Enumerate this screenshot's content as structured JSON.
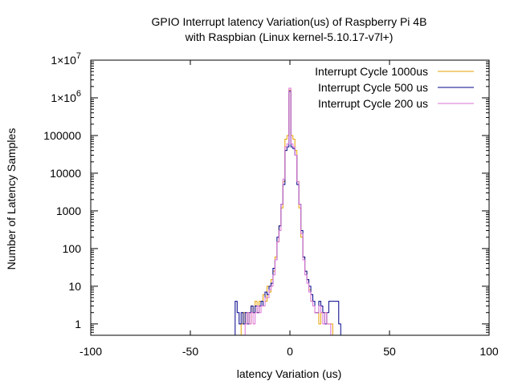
{
  "chart_data": {
    "type": "line",
    "step": true,
    "title_lines": [
      "GPIO Interrupt latency Variation(us) of Raspberry Pi 4B",
      "with Raspbian (Linux kernel-5.10.17-v7l+)"
    ],
    "xlabel": "latency Variation (us)",
    "ylabel": "Number of Latency Samples",
    "xlim": [
      -100,
      100
    ],
    "ylim": [
      0.5,
      10000000
    ],
    "yscale": "log",
    "grid": false,
    "legend_position": "top-right",
    "xticks": [
      {
        "value": -100,
        "label": "-100"
      },
      {
        "value": -50,
        "label": "-50"
      },
      {
        "value": 0,
        "label": "0"
      },
      {
        "value": 50,
        "label": "50"
      },
      {
        "value": 100,
        "label": "100"
      }
    ],
    "yticks": [
      {
        "value": 1,
        "label": "1"
      },
      {
        "value": 10,
        "label": "10"
      },
      {
        "value": 100,
        "label": "100"
      },
      {
        "value": 1000,
        "label": "1000"
      },
      {
        "value": 10000,
        "label": "10000"
      },
      {
        "value": 100000,
        "label": "100000"
      },
      {
        "value": 1000000,
        "label": "1×10",
        "exp": "6"
      },
      {
        "value": 10000000,
        "label": "1×10",
        "exp": "7"
      }
    ],
    "series": [
      {
        "name": "Interrupt Cycle 1000us",
        "color": "#e69f00",
        "points": [
          [
            -24,
            1
          ],
          [
            -23,
            2
          ],
          [
            -22,
            1
          ],
          [
            -21,
            2
          ],
          [
            -20,
            1
          ],
          [
            -19,
            3
          ],
          [
            -18,
            2
          ],
          [
            -17,
            4
          ],
          [
            -16,
            2
          ],
          [
            -15,
            4
          ],
          [
            -14,
            3
          ],
          [
            -13,
            6
          ],
          [
            -12,
            4
          ],
          [
            -11,
            10
          ],
          [
            -10,
            7
          ],
          [
            -9,
            15
          ],
          [
            -8,
            25
          ],
          [
            -7,
            60
          ],
          [
            -6,
            150
          ],
          [
            -5,
            400
          ],
          [
            -4,
            1200
          ],
          [
            -3,
            6000
          ],
          [
            -2,
            80000
          ],
          [
            -1,
            100000
          ],
          [
            0,
            1600000
          ],
          [
            1,
            100000
          ],
          [
            2,
            80000
          ],
          [
            3,
            40000
          ],
          [
            4,
            6000
          ],
          [
            5,
            1200
          ],
          [
            6,
            200
          ],
          [
            7,
            60
          ],
          [
            8,
            25
          ],
          [
            9,
            15
          ],
          [
            10,
            8
          ],
          [
            11,
            4
          ],
          [
            12,
            3
          ],
          [
            13,
            2
          ],
          [
            14,
            2
          ],
          [
            15,
            1
          ],
          [
            16,
            2
          ],
          [
            17,
            2
          ],
          [
            18,
            2
          ],
          [
            19,
            1
          ],
          [
            20,
            1
          ],
          [
            21,
            1
          ]
        ]
      },
      {
        "name": "Interrupt Cycle 500 us",
        "color": "#00008b",
        "points": [
          [
            -27,
            4
          ],
          [
            -26,
            2
          ],
          [
            -25,
            1
          ],
          [
            -24,
            2
          ],
          [
            -23,
            1
          ],
          [
            -22,
            2
          ],
          [
            -21,
            1
          ],
          [
            -20,
            2
          ],
          [
            -19,
            3
          ],
          [
            -18,
            2
          ],
          [
            -17,
            3
          ],
          [
            -16,
            2
          ],
          [
            -15,
            3
          ],
          [
            -14,
            4
          ],
          [
            -13,
            3
          ],
          [
            -12,
            7
          ],
          [
            -11,
            6
          ],
          [
            -10,
            10
          ],
          [
            -9,
            12
          ],
          [
            -8,
            30
          ],
          [
            -7,
            50
          ],
          [
            -6,
            200
          ],
          [
            -5,
            400
          ],
          [
            -4,
            1500
          ],
          [
            -3,
            5000
          ],
          [
            -2,
            40000
          ],
          [
            -1,
            50000
          ],
          [
            0,
            1500000
          ],
          [
            1,
            50000
          ],
          [
            2,
            45000
          ],
          [
            3,
            30000
          ],
          [
            4,
            5000
          ],
          [
            5,
            1500
          ],
          [
            6,
            300
          ],
          [
            7,
            60
          ],
          [
            8,
            25
          ],
          [
            9,
            15
          ],
          [
            10,
            10
          ],
          [
            11,
            6
          ],
          [
            12,
            4
          ],
          [
            13,
            2
          ],
          [
            14,
            2
          ],
          [
            15,
            4
          ],
          [
            16,
            3
          ],
          [
            17,
            2
          ],
          [
            18,
            1
          ],
          [
            19,
            2
          ],
          [
            20,
            4
          ],
          [
            21,
            4
          ],
          [
            22,
            4
          ],
          [
            23,
            4
          ],
          [
            24,
            4
          ],
          [
            25,
            1
          ]
        ]
      },
      {
        "name": "Interrupt Cycle 200 us",
        "color": "#da70d6",
        "points": [
          [
            -22,
            1
          ],
          [
            -21,
            2
          ],
          [
            -20,
            1
          ],
          [
            -19,
            2
          ],
          [
            -18,
            1
          ],
          [
            -17,
            2
          ],
          [
            -16,
            3
          ],
          [
            -15,
            2
          ],
          [
            -14,
            3
          ],
          [
            -13,
            3
          ],
          [
            -12,
            5
          ],
          [
            -11,
            5
          ],
          [
            -10,
            8
          ],
          [
            -9,
            10
          ],
          [
            -8,
            20
          ],
          [
            -7,
            50
          ],
          [
            -6,
            150
          ],
          [
            -5,
            300
          ],
          [
            -4,
            1500
          ],
          [
            -3,
            7000
          ],
          [
            -2,
            50000
          ],
          [
            -1,
            60000
          ],
          [
            0,
            1800000
          ],
          [
            1,
            60000
          ],
          [
            2,
            50000
          ],
          [
            3,
            30000
          ],
          [
            4,
            6000
          ],
          [
            5,
            1500
          ],
          [
            6,
            250
          ],
          [
            7,
            50
          ],
          [
            8,
            20
          ],
          [
            9,
            12
          ],
          [
            10,
            7
          ],
          [
            11,
            4
          ],
          [
            12,
            3
          ],
          [
            13,
            2
          ],
          [
            14,
            2
          ],
          [
            15,
            3
          ],
          [
            16,
            2
          ],
          [
            17,
            1
          ],
          [
            18,
            2
          ],
          [
            19,
            1
          ],
          [
            20,
            1
          ]
        ]
      }
    ]
  }
}
